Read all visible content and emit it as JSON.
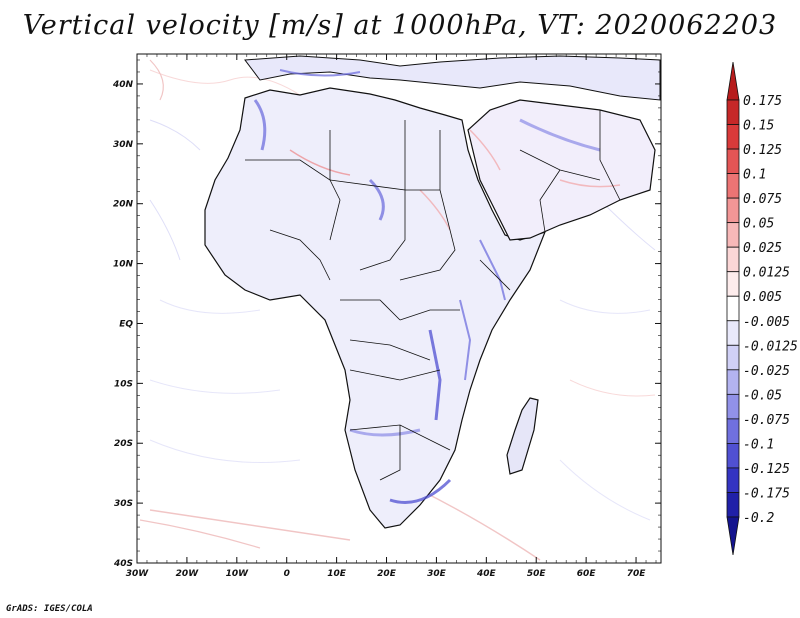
{
  "title": "Vertical velocity [m/s] at 1000hPa, VT: 2020062203",
  "credit": "GrADS: IGES/COLA",
  "map": {
    "lon_range": [
      -30,
      75
    ],
    "lat_range": [
      -40,
      45
    ],
    "x_ticks": [
      "30W",
      "20W",
      "10W",
      "0",
      "10E",
      "20E",
      "30E",
      "40E",
      "50E",
      "60E",
      "70E"
    ],
    "y_ticks": [
      "40S",
      "30S",
      "20S",
      "10S",
      "EQ",
      "10N",
      "20N",
      "30N",
      "40N"
    ]
  },
  "colorbar": {
    "levels": [
      "0.175",
      "0.15",
      "0.125",
      "0.1",
      "0.075",
      "0.05",
      "0.025",
      "0.0125",
      "0.005",
      "-0.005",
      "-0.0125",
      "-0.025",
      "-0.05",
      "-0.075",
      "-0.1",
      "-0.125",
      "-0.175",
      "-0.2"
    ],
    "colors": [
      "#b71c1c",
      "#c62828",
      "#d93a3a",
      "#e35555",
      "#ec7474",
      "#f29696",
      "#f7b8b8",
      "#fbd6d6",
      "#fdecec",
      "#ffffff",
      "#e9e9fb",
      "#d0d0f6",
      "#b3b3f0",
      "#9191e8",
      "#7070de",
      "#5050d2",
      "#3434c2",
      "#2020a8",
      "#14148e"
    ]
  }
}
